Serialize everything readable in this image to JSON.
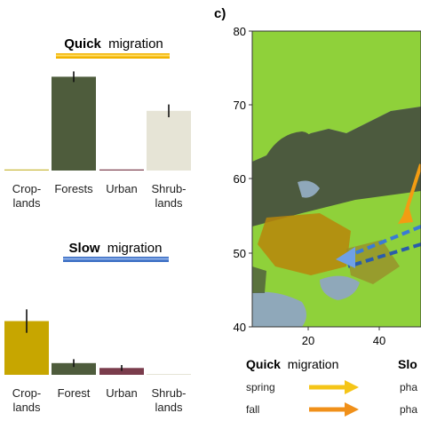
{
  "panel_c_label": "c)",
  "chart_data": [
    {
      "type": "bar",
      "title_bold": "Quick",
      "title_rest": "migration",
      "title_bar_color": "#f2b300",
      "categories": [
        [
          "Crop-",
          "lands"
        ],
        [
          "Forests"
        ],
        [
          "Urban"
        ],
        [
          "Shrub-",
          "lands"
        ]
      ],
      "values": [
        0.01,
        0.88,
        0.01,
        0.56
      ],
      "errors": [
        0.0,
        0.05,
        0.0,
        0.06
      ],
      "colors": [
        "#c9b838",
        "#4e5c3c",
        "#7a3c4c",
        "#e6e4d6"
      ],
      "ylim": [
        0,
        1.0
      ]
    },
    {
      "type": "bar",
      "title_bold": "Slow",
      "title_rest": "migration",
      "title_bar_color": "#3c6fc4",
      "categories": [
        [
          "Crop-",
          "lands"
        ],
        [
          "Forest"
        ],
        [
          "Urban"
        ],
        [
          "Shrub-",
          "lands"
        ]
      ],
      "values": [
        0.55,
        0.12,
        0.07,
        0.0
      ],
      "errors": [
        0.12,
        0.04,
        0.03,
        0.0
      ],
      "colors": [
        "#c7a600",
        "#4e5c3c",
        "#7a3c4c",
        "#e6e4d6"
      ],
      "ylim": [
        0,
        1.0
      ]
    }
  ],
  "map": {
    "y_ticks": [
      "80",
      "70",
      "60",
      "50",
      "40"
    ],
    "x_ticks": [
      "20",
      "40"
    ],
    "colors": {
      "sea": "#8fa8ba",
      "forest": "#4c5a3e",
      "open_land": "#8fd13a",
      "cropland": "#b8860b",
      "quick_arrow": "#f39c12",
      "slow_arrow": "#3a7bd5"
    }
  },
  "legend": {
    "quick_bold": "Quick",
    "quick_rest": "migration",
    "slow_partial": "Slo",
    "rows": [
      {
        "label": "spring",
        "color": "#f5c518",
        "right_text": "pha"
      },
      {
        "label": "fall",
        "color": "#f0901a",
        "right_text": "pha"
      }
    ]
  }
}
